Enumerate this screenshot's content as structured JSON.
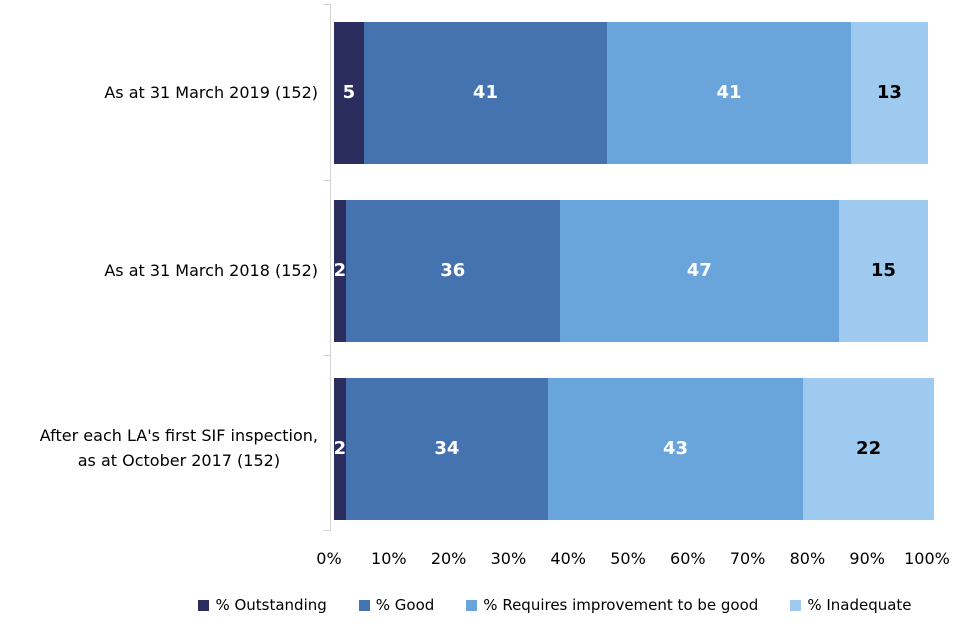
{
  "chart_data": {
    "type": "bar",
    "orientation": "horizontal",
    "stacked": true,
    "unit": "%",
    "title": "",
    "categories": [
      "As at 31 March 2019 (152)",
      "As at 31 March 2018 (152)",
      "After each LA's first SIF inspection,\nas at October 2017 (152)"
    ],
    "series": [
      {
        "name": "% Outstanding",
        "color": "#2b2d5e",
        "label_color": "#ffffff",
        "values": [
          5,
          2,
          2
        ]
      },
      {
        "name": "% Good",
        "color": "#4573af",
        "label_color": "#ffffff",
        "values": [
          41,
          36,
          34
        ]
      },
      {
        "name": "% Requires improvement to be good",
        "color": "#69a4db",
        "label_color": "#ffffff",
        "values": [
          41,
          47,
          43
        ]
      },
      {
        "name": "% Inadequate",
        "color": "#9ecaef",
        "label_color": "#000000",
        "values": [
          13,
          15,
          22
        ]
      }
    ],
    "x_axis": {
      "min": 0,
      "max": 100,
      "tick_step": 10,
      "tick_labels": [
        "0%",
        "10%",
        "20%",
        "30%",
        "40%",
        "50%",
        "60%",
        "70%",
        "80%",
        "90%",
        "100%"
      ]
    },
    "legend_position": "bottom",
    "grid": false,
    "axis_color": "#d4d4d4",
    "text_color": "#000000",
    "background": "#ffffff"
  }
}
